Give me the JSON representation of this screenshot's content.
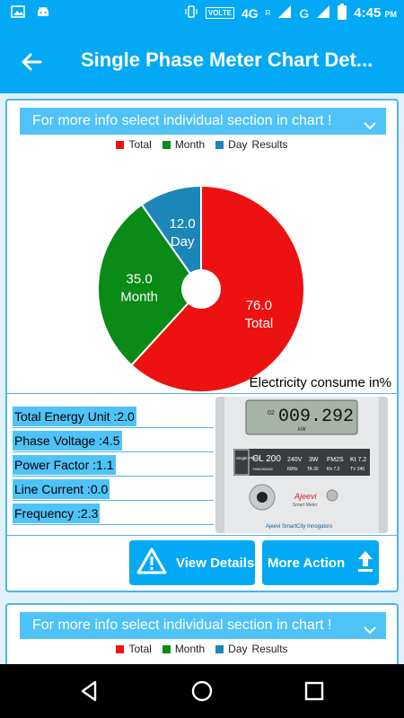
{
  "status_bar": {
    "network": "4G",
    "volte": "VOLTE",
    "carrier_r": "R",
    "carrier_g": "G",
    "time": "4:45",
    "ampm": "PM"
  },
  "toolbar": {
    "title": "Single Phase Meter Chart Det..."
  },
  "card1": {
    "info_text": "For more info select individual section in chart !",
    "legend": [
      {
        "label": "Total",
        "color": "#ee1111"
      },
      {
        "label": "Month",
        "color": "#0a8a16"
      },
      {
        "label": "Day",
        "color": "#1b86b8"
      },
      {
        "label": "Results",
        "color": ""
      }
    ],
    "chart_desc": "Electricity consume in%",
    "metrics": [
      "Total Energy Unit :2.0",
      "Phase Voltage :4.5",
      "Power Factor :1.1",
      "Line Current :0.0",
      "Frequency :2.3"
    ],
    "meter": {
      "reading_prefix": "02",
      "reading": "009.292",
      "unit": "kW",
      "phase_label": "Single Phase",
      "model": "CL 200",
      "voltage": "240V",
      "wire": "3W",
      "form": "FM2S",
      "kt": "Kt 7.2",
      "serial": "T40K393282",
      "freq": "60Hz",
      "ta": "TA 30",
      "kh": "Kh 7.2",
      "tv": "TV 240",
      "brand": "Ajeevi",
      "brand_sub": "Smart Meter",
      "footer": "Ajeevi SmartCity Innogators"
    },
    "buttons": {
      "view_details": "View Details",
      "more_action": "More Action"
    }
  },
  "card2": {
    "info_text": "For more info select individual section in chart !",
    "legend": [
      {
        "label": "Total",
        "color": "#ee1111"
      },
      {
        "label": "Month",
        "color": "#0a8a16"
      },
      {
        "label": "Day",
        "color": "#1b86b8"
      },
      {
        "label": "Results",
        "color": ""
      }
    ]
  },
  "chart_data": {
    "type": "pie",
    "categories": [
      "Total",
      "Month",
      "Day"
    ],
    "values": [
      76.0,
      35.0,
      12.0
    ],
    "labels": [
      {
        "value": "76.0",
        "name": "Total"
      },
      {
        "value": "35.0",
        "name": "Month"
      },
      {
        "value": "12.0",
        "name": "Day"
      }
    ],
    "colors": [
      "#ee1111",
      "#0a8a16",
      "#1b86b8"
    ],
    "title": "Electricity consume in%",
    "legend_title": "Results",
    "legend_position": "top"
  }
}
